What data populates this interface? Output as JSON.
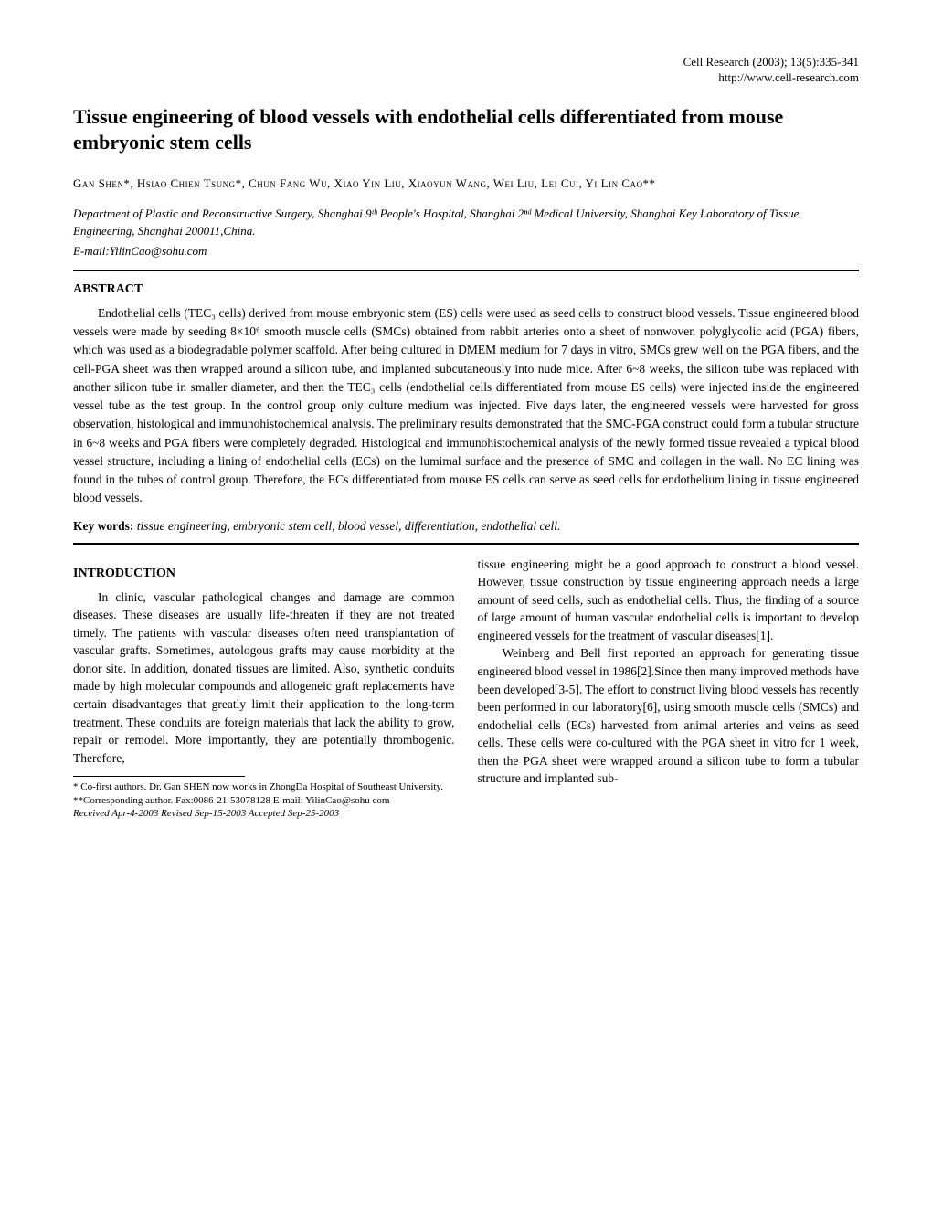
{
  "header": {
    "citation": "Cell Research (2003); 13(5):335-341",
    "url": "http://www.cell-research.com"
  },
  "title": "Tissue engineering of blood vessels with endothelial cells differentiated from mouse embryonic stem cells",
  "authors": "Gan Shen*, Hsiao Chien Tsung*, Chun Fang Wu, Xiao Yin Liu, Xiaoyun Wang, Wei Liu, Lei Cui, Yi Lin Cao**",
  "affiliation": "Department of Plastic and Reconstructive Surgery, Shanghai 9ᵗʰ People's Hospital, Shanghai 2ⁿᵈ Medical University, Shanghai Key Laboratory of Tissue Engineering, Shanghai 200011,China.",
  "email": "E-mail:YilinCao@sohu.com",
  "abstract": {
    "heading": "ABSTRACT",
    "text": "Endothelial cells (TEC₃ cells) derived from mouse embryonic stem (ES) cells were used as seed cells to construct blood vessels. Tissue engineered blood vessels were made by seeding 8×10⁶ smooth muscle cells (SMCs) obtained from rabbit arteries onto a sheet of nonwoven polyglycolic acid (PGA) fibers, which was used as a biodegradable polymer scaffold. After being cultured in DMEM medium for 7 days in vitro, SMCs grew well on the PGA fibers, and the cell-PGA sheet was then wrapped around a silicon tube, and implanted subcutaneously into nude mice. After 6~8 weeks, the silicon tube was replaced with another silicon tube in smaller diameter, and then the TEC₃ cells (endothelial cells differentiated from mouse ES cells) were injected inside the engineered vessel tube as the test group. In the control group only culture medium was injected. Five days later, the engineered vessels were harvested for gross observation, histological and immunohistochemical analysis. The preliminary results demonstrated that the SMC-PGA construct could form a tubular structure in 6~8 weeks and PGA fibers were completely degraded. Histological and immunohistochemical analysis of the newly formed tissue revealed a typical blood vessel structure, including a lining of endothelial cells (ECs) on the lumimal surface and the presence of SMC and collagen in the wall. No EC lining was found in the tubes of control group. Therefore, the ECs differentiated from mouse ES cells can serve as seed cells for endothelium lining in tissue engineered blood vessels."
  },
  "keywords": {
    "label": "Key words:",
    "text": " tissue engineering, embryonic stem cell, blood vessel, differentiation, endothelial cell."
  },
  "introduction": {
    "heading": "INTRODUCTION",
    "left_text": "In clinic, vascular pathological changes and damage are common diseases. These diseases are usually life-threaten if they are not treated timely. The patients with vascular diseases often need transplantation of vascular grafts. Sometimes, autologous grafts may cause morbidity at the donor site. In addition, donated tissues are limited. Also, synthetic conduits made by high molecular compounds and allogeneic graft replacements have certain disadvantages that greatly limit their application to the long-term treatment. These conduits are foreign materials that lack the ability to grow, repair or remodel. More importantly, they are potentially thrombogenic. Therefore,",
    "right_text_1": "tissue engineering might be a good approach to construct a blood vessel. However, tissue construction by tissue engineering approach needs a large amount of seed cells, such as endothelial cells. Thus, the finding of a source of large amount of human vascular endothelial cells is important to develop engineered vessels for the treatment of vascular diseases[1].",
    "right_text_2": "Weinberg and Bell first reported an approach for generating tissue engineered blood vessel in 1986[2].Since then many improved methods have been developed[3-5]. The effort to construct living blood vessels has recently been performed in our laboratory[6], using smooth muscle cells (SMCs) and endothelial cells (ECs) harvested from animal arteries and veins as seed cells. These cells were co-cultured with the PGA sheet in vitro for 1 week, then the PGA sheet were wrapped around a silicon tube to form a tubular structure and implanted sub-"
  },
  "footnotes": {
    "note1": "* Co-first authors. Dr. Gan SHEN now works in ZhongDa Hospital of Southeast University.",
    "note2": "**Corresponding author. Fax:0086-21-53078128 E-mail: YilinCao@sohu com",
    "note3": "Received Apr-4-2003 Revised Sep-15-2003 Accepted Sep-25-2003"
  },
  "styling": {
    "background_color": "#ffffff",
    "text_color": "#000000",
    "title_fontsize": 22,
    "body_fontsize": 13.5,
    "footnote_fontsize": 11,
    "divider_color": "#000000",
    "font_family": "Georgia, Times New Roman, serif"
  }
}
